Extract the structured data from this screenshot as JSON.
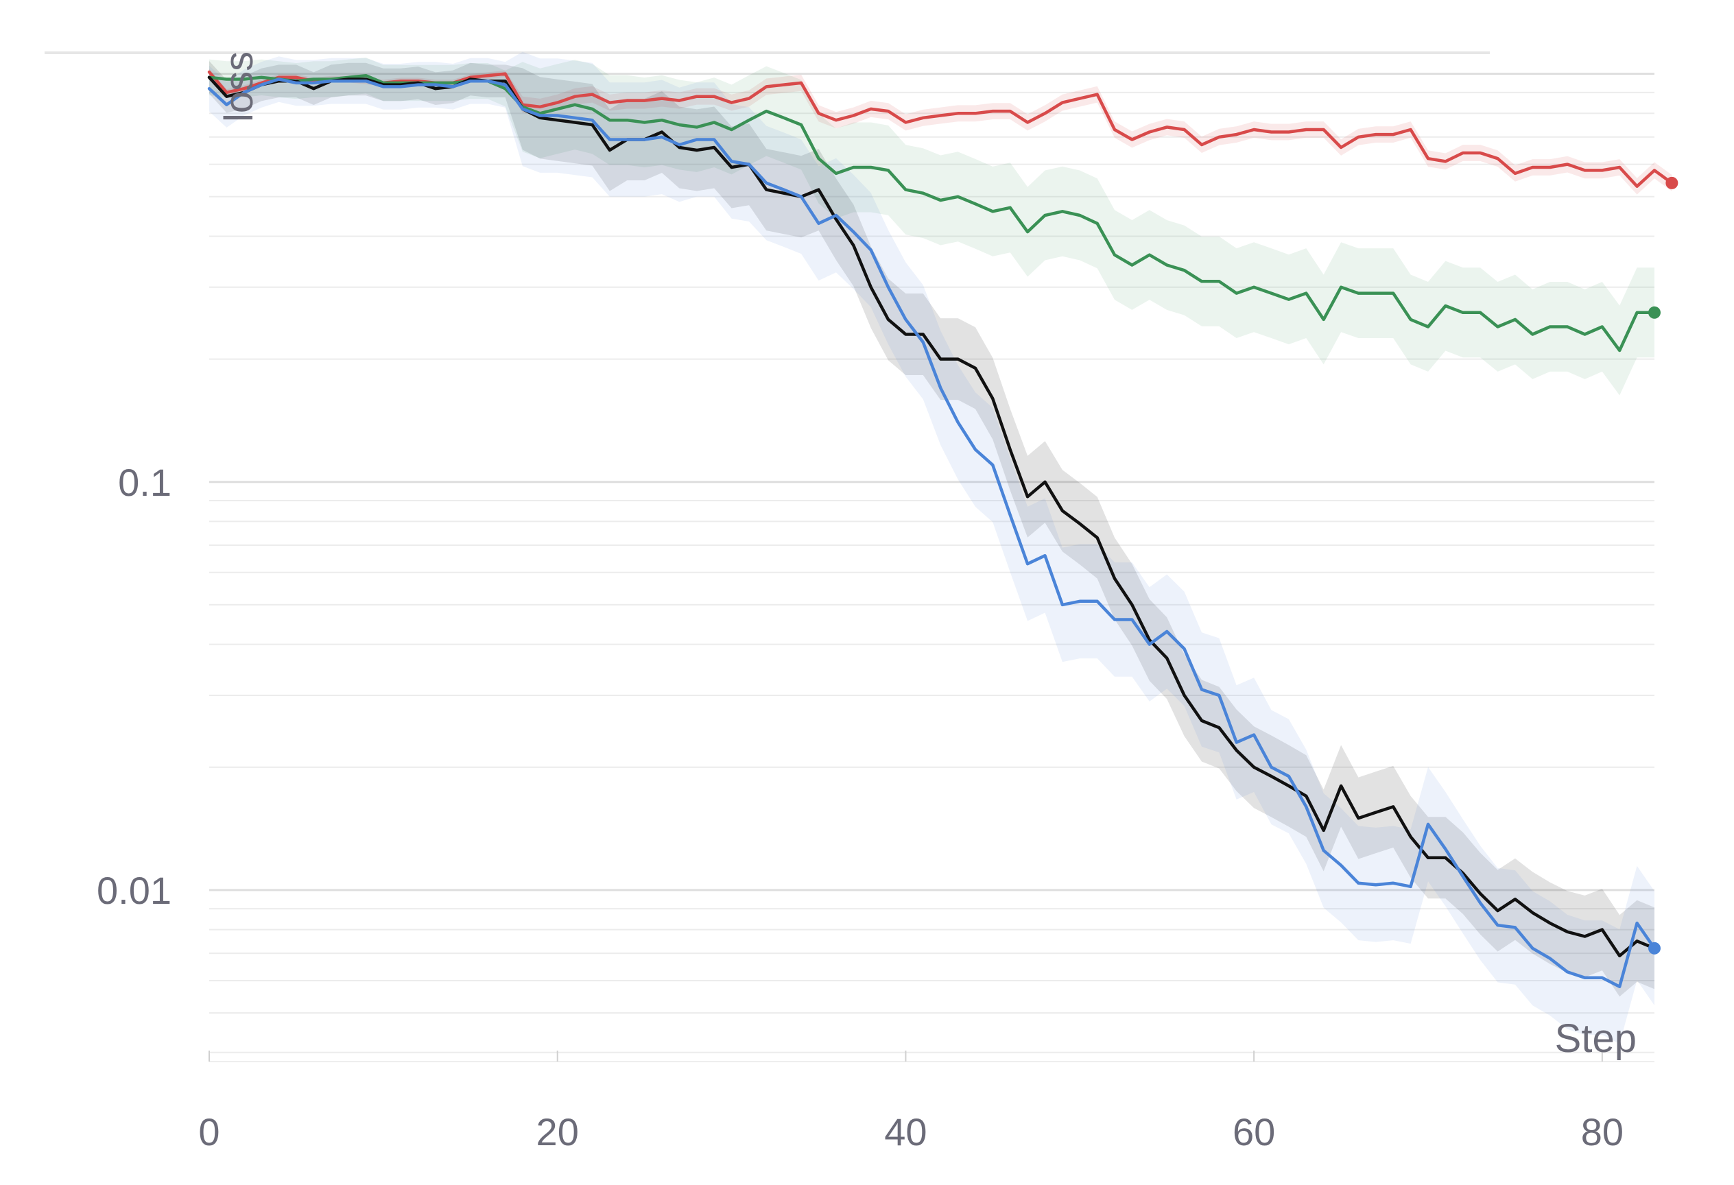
{
  "chart_data": {
    "type": "line",
    "title": "",
    "xlabel": "Step",
    "ylabel": "loss",
    "xlim": [
      0,
      83
    ],
    "ylim": [
      0.0038,
      1.05
    ],
    "yscale": "log",
    "x_ticks": [
      0,
      20,
      40,
      60,
      80
    ],
    "y_ticks": [
      {
        "value": 0.1,
        "label": "0.1"
      },
      {
        "value": 0.01,
        "label": "0.01"
      }
    ],
    "grid": true,
    "legend": "none",
    "series": [
      {
        "color": "#d84a4a",
        "band_alpha": 0.12,
        "band_width": 0.02,
        "end_marker": true,
        "values": [
          1.01,
          0.9,
          0.92,
          0.95,
          0.98,
          0.98,
          0.96,
          0.97,
          0.97,
          0.96,
          0.95,
          0.96,
          0.96,
          0.95,
          0.95,
          0.98,
          0.99,
          1.0,
          0.84,
          0.83,
          0.85,
          0.88,
          0.89,
          0.85,
          0.86,
          0.86,
          0.87,
          0.86,
          0.88,
          0.88,
          0.85,
          0.87,
          0.93,
          0.94,
          0.95,
          0.8,
          0.77,
          0.79,
          0.82,
          0.81,
          0.76,
          0.78,
          0.79,
          0.8,
          0.8,
          0.81,
          0.81,
          0.76,
          0.8,
          0.85,
          0.87,
          0.89,
          0.73,
          0.69,
          0.72,
          0.74,
          0.73,
          0.67,
          0.7,
          0.71,
          0.73,
          0.72,
          0.72,
          0.73,
          0.73,
          0.66,
          0.7,
          0.71,
          0.71,
          0.73,
          0.62,
          0.61,
          0.64,
          0.64,
          0.62,
          0.57,
          0.59,
          0.59,
          0.6,
          0.58,
          0.58,
          0.59,
          0.53,
          0.58,
          0.54
        ]
      },
      {
        "color": "#3a9155",
        "band_alpha": 0.1,
        "band_width": 0.11,
        "end_marker": true,
        "values": [
          0.98,
          0.97,
          0.97,
          0.98,
          0.97,
          0.96,
          0.97,
          0.97,
          0.98,
          0.99,
          0.95,
          0.95,
          0.95,
          0.95,
          0.95,
          0.96,
          0.96,
          0.92,
          0.83,
          0.8,
          0.82,
          0.84,
          0.82,
          0.77,
          0.77,
          0.76,
          0.77,
          0.75,
          0.74,
          0.76,
          0.73,
          0.77,
          0.81,
          0.78,
          0.75,
          0.62,
          0.57,
          0.59,
          0.59,
          0.58,
          0.52,
          0.51,
          0.49,
          0.5,
          0.48,
          0.46,
          0.47,
          0.41,
          0.45,
          0.46,
          0.45,
          0.43,
          0.36,
          0.34,
          0.36,
          0.34,
          0.33,
          0.31,
          0.31,
          0.29,
          0.3,
          0.29,
          0.28,
          0.29,
          0.25,
          0.3,
          0.29,
          0.29,
          0.29,
          0.25,
          0.24,
          0.27,
          0.26,
          0.26,
          0.24,
          0.25,
          0.23,
          0.24,
          0.24,
          0.23,
          0.24,
          0.21,
          0.26,
          0.26
        ]
      },
      {
        "color": "#111111",
        "band_alpha": 0.12,
        "band_width": 0.1,
        "end_marker": false,
        "values": [
          0.98,
          0.88,
          0.9,
          0.94,
          0.96,
          0.96,
          0.92,
          0.96,
          0.97,
          0.97,
          0.94,
          0.94,
          0.95,
          0.92,
          0.93,
          0.97,
          0.96,
          0.96,
          0.82,
          0.78,
          0.77,
          0.76,
          0.75,
          0.65,
          0.69,
          0.69,
          0.72,
          0.66,
          0.65,
          0.66,
          0.59,
          0.6,
          0.52,
          0.51,
          0.5,
          0.52,
          0.44,
          0.38,
          0.3,
          0.25,
          0.23,
          0.23,
          0.2,
          0.2,
          0.19,
          0.16,
          0.12,
          0.092,
          0.1,
          0.085,
          0.079,
          0.073,
          0.058,
          0.05,
          0.041,
          0.037,
          0.03,
          0.026,
          0.025,
          0.022,
          0.02,
          0.019,
          0.018,
          0.017,
          0.014,
          0.018,
          0.015,
          0.0155,
          0.016,
          0.0135,
          0.012,
          0.012,
          0.011,
          0.0098,
          0.0089,
          0.0095,
          0.0088,
          0.0083,
          0.0079,
          0.0077,
          0.008,
          0.0069,
          0.0075,
          0.0072
        ]
      },
      {
        "color": "#4a84d8",
        "band_alpha": 0.1,
        "band_width": 0.14,
        "end_marker": true,
        "values": [
          0.92,
          0.84,
          0.9,
          0.94,
          0.97,
          0.95,
          0.95,
          0.96,
          0.96,
          0.96,
          0.93,
          0.93,
          0.94,
          0.94,
          0.93,
          0.96,
          0.96,
          0.94,
          0.82,
          0.79,
          0.79,
          0.78,
          0.77,
          0.69,
          0.69,
          0.69,
          0.7,
          0.67,
          0.69,
          0.69,
          0.61,
          0.6,
          0.54,
          0.52,
          0.5,
          0.43,
          0.45,
          0.41,
          0.37,
          0.3,
          0.25,
          0.22,
          0.17,
          0.14,
          0.12,
          0.11,
          0.083,
          0.063,
          0.066,
          0.05,
          0.051,
          0.051,
          0.046,
          0.046,
          0.04,
          0.043,
          0.039,
          0.031,
          0.03,
          0.023,
          0.024,
          0.02,
          0.019,
          0.016,
          0.0125,
          0.0115,
          0.0104,
          0.0103,
          0.0104,
          0.0102,
          0.0145,
          0.0126,
          0.0108,
          0.0093,
          0.0082,
          0.0081,
          0.0072,
          0.0068,
          0.0063,
          0.0061,
          0.0061,
          0.0058,
          0.0083,
          0.0072
        ]
      }
    ]
  }
}
